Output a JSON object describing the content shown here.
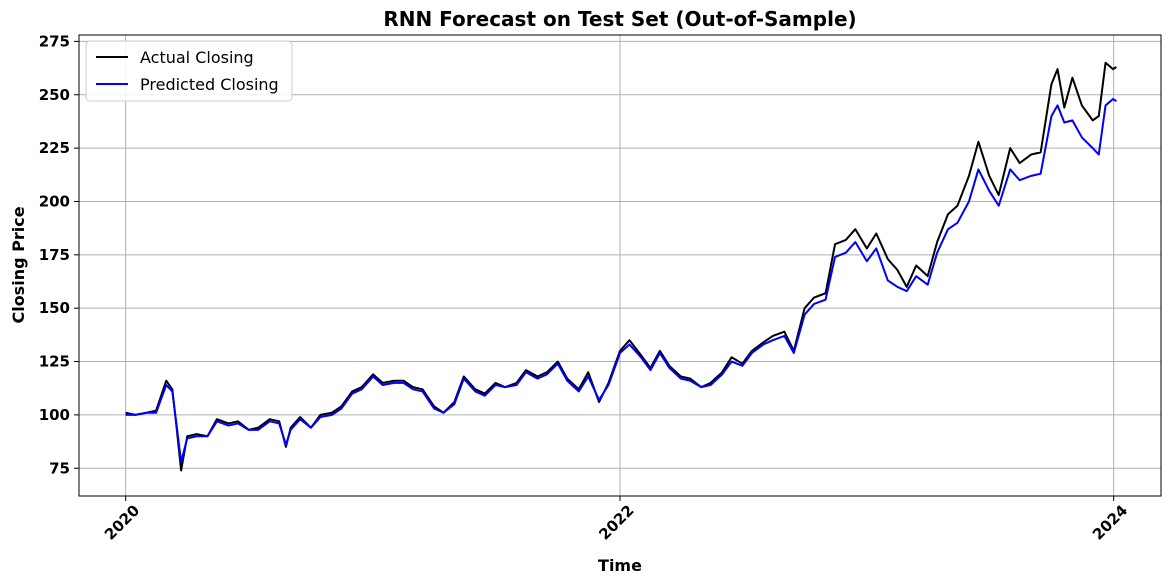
{
  "chart_data": {
    "type": "line",
    "title": "RNN Forecast on Test Set (Out-of-Sample)",
    "xlabel": "Time",
    "ylabel": "Closing Price",
    "x_ticks": [
      "2020",
      "2022",
      "2024"
    ],
    "y_ticks": [
      75,
      100,
      125,
      150,
      175,
      200,
      225,
      250,
      275
    ],
    "xlim": [
      "2019-10-24",
      "2024-03-11"
    ],
    "ylim": [
      62,
      278
    ],
    "grid": true,
    "legend_position": "top-left",
    "x": [
      "2020-01-01",
      "2020-01-15",
      "2020-02-01",
      "2020-02-15",
      "2020-03-01",
      "2020-03-10",
      "2020-03-16",
      "2020-03-23",
      "2020-04-01",
      "2020-04-15",
      "2020-05-01",
      "2020-05-15",
      "2020-06-01",
      "2020-06-15",
      "2020-07-01",
      "2020-07-15",
      "2020-08-01",
      "2020-08-15",
      "2020-08-25",
      "2020-09-01",
      "2020-09-15",
      "2020-10-01",
      "2020-10-15",
      "2020-11-01",
      "2020-11-15",
      "2020-12-01",
      "2020-12-15",
      "2021-01-01",
      "2021-01-15",
      "2021-02-01",
      "2021-02-15",
      "2021-03-01",
      "2021-03-15",
      "2021-04-01",
      "2021-04-15",
      "2021-05-01",
      "2021-05-15",
      "2021-06-01",
      "2021-06-15",
      "2021-07-01",
      "2021-07-15",
      "2021-08-01",
      "2021-08-15",
      "2021-09-01",
      "2021-09-15",
      "2021-10-01",
      "2021-10-15",
      "2021-11-01",
      "2021-11-15",
      "2021-12-01",
      "2021-12-15",
      "2022-01-01",
      "2022-01-15",
      "2022-02-01",
      "2022-02-15",
      "2022-03-01",
      "2022-03-15",
      "2022-04-01",
      "2022-04-15",
      "2022-05-01",
      "2022-05-15",
      "2022-06-01",
      "2022-06-15",
      "2022-07-01",
      "2022-07-15",
      "2022-08-01",
      "2022-08-15",
      "2022-09-01",
      "2022-09-15",
      "2022-10-01",
      "2022-10-15",
      "2022-11-01",
      "2022-11-15",
      "2022-12-01",
      "2022-12-15",
      "2023-01-01",
      "2023-01-15",
      "2023-02-01",
      "2023-02-15",
      "2023-03-01",
      "2023-03-15",
      "2023-04-01",
      "2023-04-15",
      "2023-05-01",
      "2023-05-15",
      "2023-06-01",
      "2023-06-15",
      "2023-07-01",
      "2023-07-15",
      "2023-08-01",
      "2023-08-15",
      "2023-09-01",
      "2023-09-15",
      "2023-10-01",
      "2023-10-10",
      "2023-10-20",
      "2023-11-01",
      "2023-11-15",
      "2023-12-01",
      "2023-12-10",
      "2023-12-20",
      "2023-12-31",
      "2024-01-05"
    ],
    "series": [
      {
        "name": "Actual Closing",
        "color": "#000000",
        "values": [
          101,
          100,
          101,
          102,
          116,
          112,
          95,
          74,
          90,
          91,
          90,
          98,
          96,
          97,
          93,
          94,
          98,
          97,
          85,
          94,
          99,
          94,
          100,
          101,
          104,
          111,
          113,
          119,
          115,
          116,
          116,
          113,
          112,
          104,
          101,
          106,
          118,
          112,
          110,
          115,
          113,
          115,
          121,
          118,
          120,
          125,
          117,
          112,
          120,
          106,
          115,
          130,
          135,
          128,
          122,
          130,
          123,
          118,
          117,
          113,
          115,
          120,
          127,
          124,
          130,
          134,
          137,
          139,
          130,
          150,
          155,
          157,
          180,
          182,
          187,
          178,
          185,
          173,
          168,
          160,
          170,
          165,
          181,
          194,
          198,
          212,
          228,
          212,
          203,
          225,
          218,
          222,
          223,
          255,
          262,
          244,
          258,
          245,
          238,
          240,
          265,
          262,
          263
        ]
      },
      {
        "name": "Predicted Closing",
        "color": "#0000ff",
        "values": [
          100,
          100,
          101,
          101,
          114,
          111,
          96,
          78,
          89,
          90,
          90,
          97,
          95,
          96,
          93,
          93,
          97,
          96,
          86,
          93,
          98,
          94,
          99,
          100,
          103,
          110,
          112,
          118,
          114,
          115,
          115,
          112,
          111,
          103,
          101,
          105,
          117,
          111,
          109,
          114,
          113,
          114,
          120,
          117,
          119,
          124,
          116,
          111,
          118,
          107,
          114,
          129,
          133,
          127,
          121,
          129,
          122,
          117,
          116,
          113,
          114,
          119,
          125,
          123,
          129,
          133,
          135,
          137,
          129,
          147,
          152,
          154,
          174,
          176,
          181,
          172,
          178,
          163,
          160,
          158,
          165,
          161,
          176,
          187,
          190,
          200,
          215,
          205,
          198,
          215,
          210,
          212,
          213,
          240,
          245,
          237,
          238,
          230,
          225,
          222,
          245,
          248,
          247
        ]
      }
    ]
  }
}
